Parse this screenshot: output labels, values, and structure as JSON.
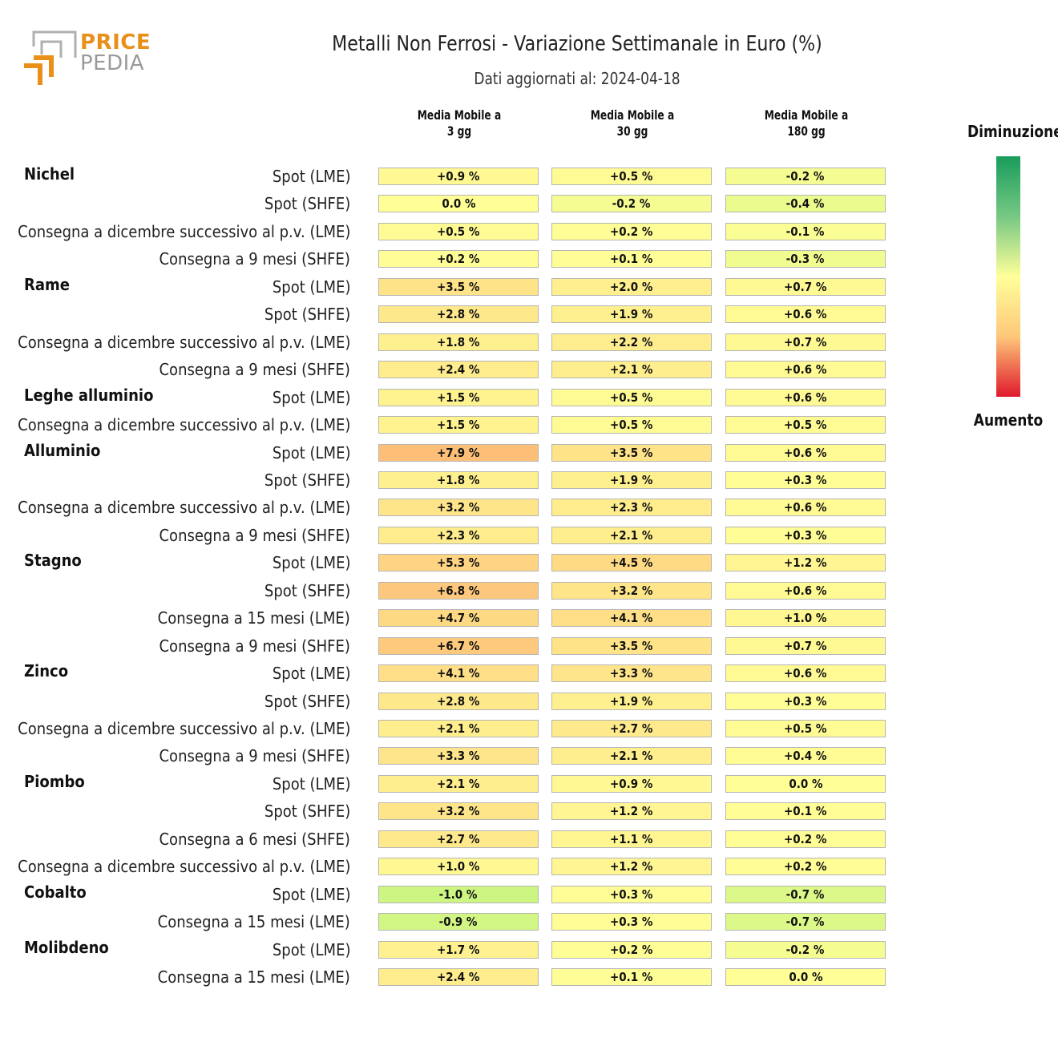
{
  "logo": {
    "line1": "PRICE",
    "line2": "PEDIA"
  },
  "chart_data": {
    "type": "heatmap",
    "title": "Metalli Non Ferrosi - Variazione Settimanale in Euro (%)",
    "subtitle": "Dati aggiornati al: 2024-04-18",
    "columns": [
      [
        "Media Mobile a",
        "3 gg"
      ],
      [
        "Media Mobile a",
        "30 gg"
      ],
      [
        "Media Mobile a",
        "180 gg"
      ]
    ],
    "legend": {
      "top": "Diminuzione",
      "bottom": "Aumento"
    },
    "groups": [
      {
        "name": "Nichel",
        "rows": [
          {
            "label": "Spot (LME)",
            "values": [
              "+0.9 %",
              "+0.5 %",
              "-0.2 %"
            ]
          },
          {
            "label": "Spot (SHFE)",
            "values": [
              "0.0 %",
              "-0.2 %",
              "-0.4 %"
            ]
          },
          {
            "label": "Consegna a dicembre successivo al p.v. (LME)",
            "values": [
              "+0.5 %",
              "+0.2 %",
              "-0.1 %"
            ]
          },
          {
            "label": "Consegna a 9 mesi (SHFE)",
            "values": [
              "+0.2 %",
              "+0.1 %",
              "-0.3 %"
            ]
          }
        ]
      },
      {
        "name": "Rame",
        "rows": [
          {
            "label": "Spot (LME)",
            "values": [
              "+3.5 %",
              "+2.0 %",
              "+0.7 %"
            ]
          },
          {
            "label": "Spot (SHFE)",
            "values": [
              "+2.8 %",
              "+1.9 %",
              "+0.6 %"
            ]
          },
          {
            "label": "Consegna a dicembre successivo al p.v. (LME)",
            "values": [
              "+1.8 %",
              "+2.2 %",
              "+0.7 %"
            ]
          },
          {
            "label": "Consegna a 9 mesi (SHFE)",
            "values": [
              "+2.4 %",
              "+2.1 %",
              "+0.6 %"
            ]
          }
        ]
      },
      {
        "name": "Leghe alluminio",
        "rows": [
          {
            "label": "Spot (LME)",
            "values": [
              "+1.5 %",
              "+0.5 %",
              "+0.6 %"
            ]
          },
          {
            "label": "Consegna a dicembre successivo al p.v. (LME)",
            "values": [
              "+1.5 %",
              "+0.5 %",
              "+0.5 %"
            ]
          }
        ]
      },
      {
        "name": "Alluminio",
        "rows": [
          {
            "label": "Spot (LME)",
            "values": [
              "+7.9 %",
              "+3.5 %",
              "+0.6 %"
            ]
          },
          {
            "label": "Spot (SHFE)",
            "values": [
              "+1.8 %",
              "+1.9 %",
              "+0.3 %"
            ]
          },
          {
            "label": "Consegna a dicembre successivo al p.v. (LME)",
            "values": [
              "+3.2 %",
              "+2.3 %",
              "+0.6 %"
            ]
          },
          {
            "label": "Consegna a 9 mesi (SHFE)",
            "values": [
              "+2.3 %",
              "+2.1 %",
              "+0.3 %"
            ]
          }
        ]
      },
      {
        "name": "Stagno",
        "rows": [
          {
            "label": "Spot (LME)",
            "values": [
              "+5.3 %",
              "+4.5 %",
              "+1.2 %"
            ]
          },
          {
            "label": "Spot (SHFE)",
            "values": [
              "+6.8 %",
              "+3.2 %",
              "+0.6 %"
            ]
          },
          {
            "label": "Consegna a 15 mesi (LME)",
            "values": [
              "+4.7 %",
              "+4.1 %",
              "+1.0 %"
            ]
          },
          {
            "label": "Consegna a 9 mesi (SHFE)",
            "values": [
              "+6.7 %",
              "+3.5 %",
              "+0.7 %"
            ]
          }
        ]
      },
      {
        "name": "Zinco",
        "rows": [
          {
            "label": "Spot (LME)",
            "values": [
              "+4.1 %",
              "+3.3 %",
              "+0.6 %"
            ]
          },
          {
            "label": "Spot (SHFE)",
            "values": [
              "+2.8 %",
              "+1.9 %",
              "+0.3 %"
            ]
          },
          {
            "label": "Consegna a dicembre successivo al p.v. (LME)",
            "values": [
              "+2.1 %",
              "+2.7 %",
              "+0.5 %"
            ]
          },
          {
            "label": "Consegna a 9 mesi (SHFE)",
            "values": [
              "+3.3 %",
              "+2.1 %",
              "+0.4 %"
            ]
          }
        ]
      },
      {
        "name": "Piombo",
        "rows": [
          {
            "label": "Spot (LME)",
            "values": [
              "+2.1 %",
              "+0.9 %",
              "0.0 %"
            ]
          },
          {
            "label": "Spot (SHFE)",
            "values": [
              "+3.2 %",
              "+1.2 %",
              "+0.1 %"
            ]
          },
          {
            "label": "Consegna a 6 mesi (SHFE)",
            "values": [
              "+2.7 %",
              "+1.1 %",
              "+0.2 %"
            ]
          },
          {
            "label": "Consegna a dicembre successivo al p.v. (LME)",
            "values": [
              "+1.0 %",
              "+1.2 %",
              "+0.2 %"
            ]
          }
        ]
      },
      {
        "name": "Cobalto",
        "rows": [
          {
            "label": "Spot (LME)",
            "values": [
              "-1.0 %",
              "+0.3 %",
              "-0.7 %"
            ]
          },
          {
            "label": "Consegna a 15 mesi (LME)",
            "values": [
              "-0.9 %",
              "+0.3 %",
              "-0.7 %"
            ]
          }
        ]
      },
      {
        "name": "Molibdeno",
        "rows": [
          {
            "label": "Spot (LME)",
            "values": [
              "+1.7 %",
              "+0.2 %",
              "-0.2 %"
            ]
          },
          {
            "label": "Consegna a 15 mesi (LME)",
            "values": [
              "+2.4 %",
              "+0.1 %",
              "0.0 %"
            ]
          }
        ]
      }
    ]
  }
}
